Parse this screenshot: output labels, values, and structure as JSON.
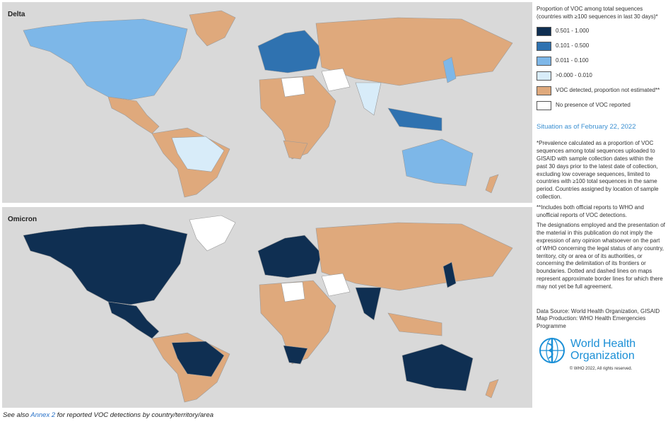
{
  "maps": [
    {
      "label": "Delta"
    },
    {
      "label": "Omicron"
    }
  ],
  "legend": {
    "title": "Proportion of VOC among total sequences",
    "subtitle": "(countries with ≥100 sequences in last 30 days)*",
    "items": [
      {
        "label": "0.501 - 1.000",
        "color": "#0f2f52"
      },
      {
        "label": "0.101 - 0.500",
        "color": "#2f72b0"
      },
      {
        "label": "0.011 - 0.100",
        "color": "#7db7e8"
      },
      {
        "label": ">0.000 - 0.010",
        "color": "#d8ecf9"
      },
      {
        "label": "VOC detected, proportion not estimated**",
        "color": "#dfa97c"
      },
      {
        "label": "No presence of VOC reported",
        "color": "#ffffff"
      }
    ]
  },
  "situation": "Situation as of February 22, 2022",
  "notes": [
    "*Prevalence calculated as a proportion of VOC sequences among total sequences uploaded to GISAID with sample collection dates within the past 30 days prior to the latest date of collection, excluding low coverage sequences, limited to countries with ≥100 total sequences in the same period. Countries assigned by location of sample collection.",
    "**Includes both official reports to WHO and unofficial reports of VOC detections."
  ],
  "disclaimer": "The designations employed and the presentation of the material in this publication do not imply the expression of any opinion whatsoever on the part of WHO concerning the legal status of any country, territory, city or area or of its authorities, or concerning the delimitation of its frontiers or boundaries. Dotted and dashed lines on maps represent approximate border lines for which there may not yet be full agreement.",
  "source": [
    "Data Source: World Health Organization, GISAID",
    "Map Production: WHO Health Emergencies Programme"
  ],
  "logo": {
    "line1": "World Health",
    "line2": "Organization",
    "copyright": "© WHO 2022, All rights reserved."
  },
  "footer": {
    "prefix": "See also ",
    "link": "Annex 2",
    "suffix": " for reported VOC detections by country/territory/area"
  }
}
